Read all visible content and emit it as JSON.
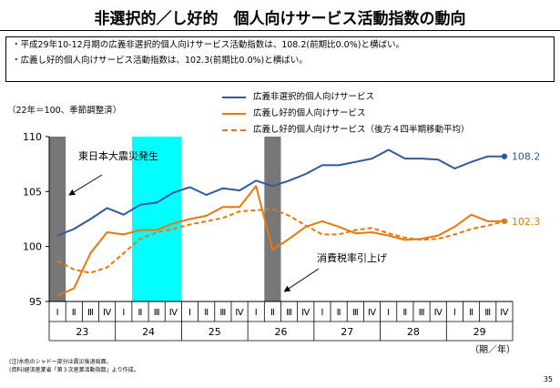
{
  "slide": {
    "title": "非選択的／し好的　個人向けサービス活動指数の動向",
    "bullets": [
      "・平成29年10-12月期の広義非選択的個人向けサービス活動指数は、108.2(前期比0.0%)と横ばい。",
      "・広義し好的個人向けサービス活動指数は、102.3(前期比0.0%)と横ばい。"
    ],
    "unit_note": "（22年＝100、季節調整済）",
    "footnotes": [
      "(注)水色のシャドー部分は震災後退局面。",
      "(資料)経済産業省「第３次産業活動指数」より作成。"
    ],
    "page_number": "35"
  },
  "chart_data": {
    "type": "line",
    "title": "",
    "xlabel": "（期／年）",
    "ylabel": "",
    "ylim": [
      95,
      110
    ],
    "yticks": [
      95,
      100,
      105,
      110
    ],
    "quarters": [
      "Ⅰ",
      "Ⅱ",
      "Ⅲ",
      "Ⅳ",
      "Ⅰ",
      "Ⅱ",
      "Ⅲ",
      "Ⅳ",
      "Ⅰ",
      "Ⅱ",
      "Ⅲ",
      "Ⅳ",
      "Ⅰ",
      "Ⅱ",
      "Ⅲ",
      "Ⅳ",
      "Ⅰ",
      "Ⅱ",
      "Ⅲ",
      "Ⅳ",
      "Ⅰ",
      "Ⅱ",
      "Ⅲ",
      "Ⅳ",
      "Ⅰ",
      "Ⅱ",
      "Ⅲ",
      "Ⅳ"
    ],
    "years": [
      {
        "label": "23",
        "start": 0,
        "end": 3
      },
      {
        "label": "24",
        "start": 4,
        "end": 7
      },
      {
        "label": "25",
        "start": 8,
        "end": 11
      },
      {
        "label": "26",
        "start": 12,
        "end": 15
      },
      {
        "label": "27",
        "start": 16,
        "end": 19
      },
      {
        "label": "28",
        "start": 20,
        "end": 23
      },
      {
        "label": "29",
        "start": 24,
        "end": 27
      }
    ],
    "series": [
      {
        "name": "広義非選択的個人向けサービス",
        "color": "#2e5a9c",
        "style": "solid",
        "values": [
          101.0,
          101.6,
          102.5,
          103.5,
          102.9,
          103.8,
          104.0,
          104.9,
          105.4,
          104.7,
          105.3,
          105.1,
          106.0,
          105.5,
          106.0,
          106.6,
          107.4,
          107.4,
          107.7,
          108.0,
          108.8,
          108.0,
          108.0,
          107.9,
          107.1,
          107.7,
          108.2,
          108.2
        ]
      },
      {
        "name": "広義し好的個人向けサービス",
        "color": "#e8780e",
        "style": "solid",
        "values": [
          95.5,
          96.2,
          99.4,
          101.3,
          101.1,
          101.5,
          101.5,
          102.1,
          102.5,
          102.8,
          103.6,
          103.6,
          105.5,
          99.7,
          100.7,
          101.8,
          102.3,
          101.8,
          101.2,
          101.3,
          101.0,
          100.6,
          100.7,
          101.0,
          101.8,
          102.9,
          102.3,
          102.3
        ]
      },
      {
        "name": "広義し好的個人向けサービス（後方４四半期移動平均）",
        "color": "#e8780e",
        "style": "dashed",
        "values": [
          98.7,
          97.9,
          97.6,
          98.1,
          99.4,
          100.7,
          101.3,
          101.6,
          102.0,
          102.3,
          102.6,
          103.2,
          103.3,
          103.4,
          102.8,
          101.9,
          101.1,
          101.1,
          101.5,
          101.7,
          101.2,
          100.8,
          100.6,
          100.7,
          101.1,
          101.6,
          101.9,
          102.3
        ]
      }
    ],
    "end_labels": [
      {
        "series": 0,
        "text": "108.2"
      },
      {
        "series": 1,
        "text": "102.3"
      }
    ],
    "shaded_regions": [
      {
        "start": 0,
        "end": 0,
        "color": "#777777",
        "meaning": "gray"
      },
      {
        "start": 5,
        "end": 7,
        "color": "#00ffff",
        "meaning": "cyan"
      },
      {
        "start": 13,
        "end": 13,
        "color": "#777777",
        "meaning": "gray"
      }
    ],
    "annotations": [
      {
        "text": "東日本大震災発生",
        "anchor_index": 0,
        "type": "earthquake"
      },
      {
        "text": "消費税率引上げ",
        "anchor_index": 13,
        "type": "tax"
      }
    ],
    "legend_position": "top"
  }
}
